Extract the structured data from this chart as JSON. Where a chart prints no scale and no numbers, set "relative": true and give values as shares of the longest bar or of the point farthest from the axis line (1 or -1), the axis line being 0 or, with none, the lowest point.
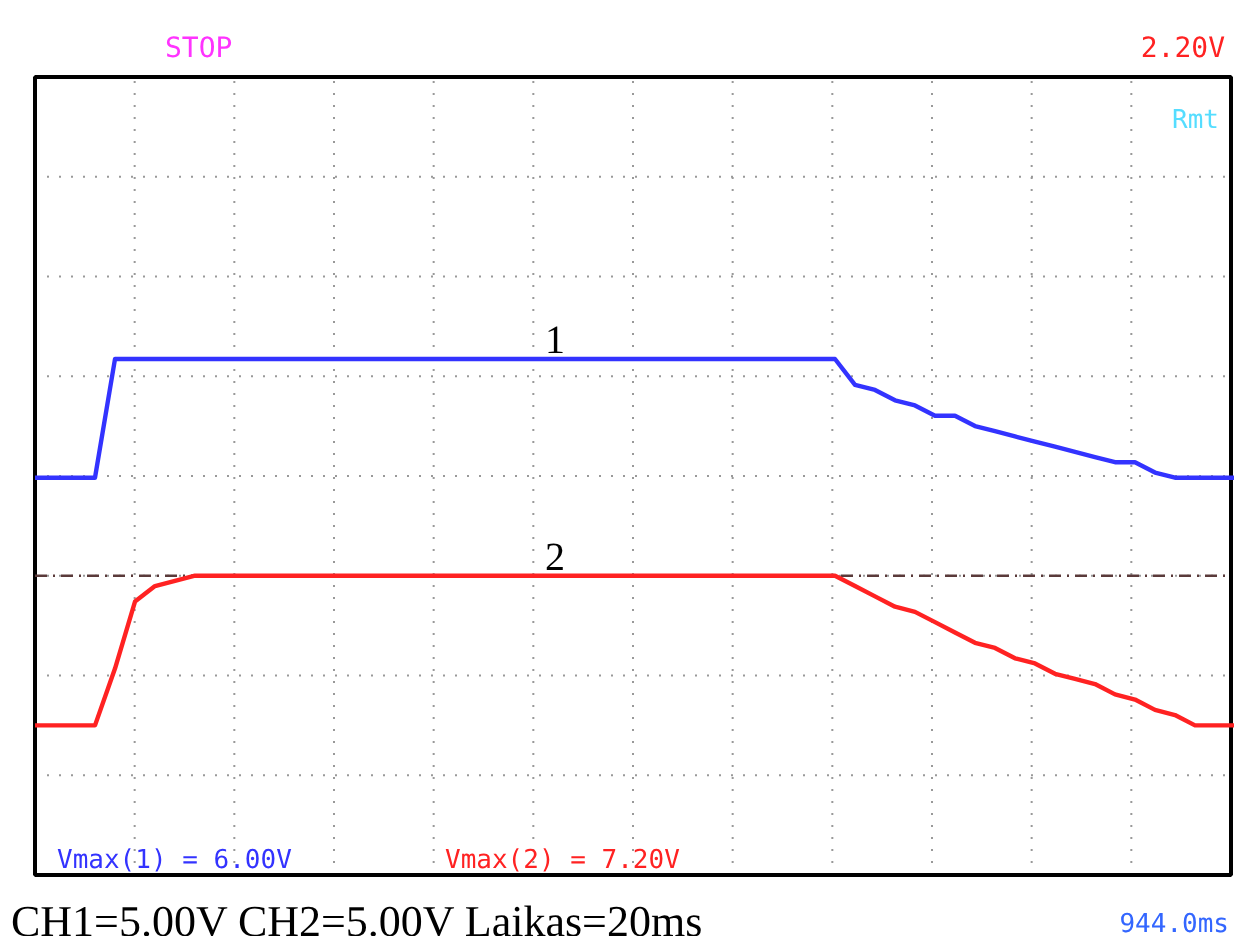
{
  "chart_data": {
    "type": "line",
    "relative": true,
    "grid": true,
    "legend": false,
    "line_style": "solid",
    "marker": "none",
    "categories": [
      null,
      null,
      null,
      null,
      null,
      null,
      null,
      null,
      null,
      null,
      null,
      null,
      null,
      null,
      null,
      null,
      null,
      null,
      null,
      null,
      null,
      null,
      null,
      null,
      null,
      null,
      null,
      null,
      null,
      null,
      null,
      null,
      null,
      null,
      null,
      null,
      null,
      null,
      null,
      null,
      null,
      null,
      null,
      null,
      null,
      null,
      null,
      null,
      null,
      null,
      null,
      null,
      null,
      null,
      null,
      null,
      null,
      null,
      null,
      null,
      null
    ],
    "series": [
      {
        "name": "1",
        "color": "#3333ff",
        "values": [
          0.77,
          0.77,
          0.77,
          0.77,
          1,
          1,
          1,
          1,
          1,
          1,
          1,
          1,
          1,
          1,
          1,
          1,
          1,
          1,
          1,
          1,
          1,
          1,
          1,
          1,
          1,
          1,
          1,
          1,
          1,
          1,
          1,
          1,
          1,
          1,
          1,
          1,
          1,
          1,
          1,
          1,
          1,
          0.95,
          0.94,
          0.92,
          0.91,
          0.89,
          0.89,
          0.87,
          0.86,
          0.85,
          0.84,
          0.83,
          0.82,
          0.81,
          0.8,
          0.8,
          0.78,
          0.77,
          0.77,
          0.77,
          0.77
        ]
      },
      {
        "name": "2",
        "color": "#ff2222",
        "values": [
          0.29,
          0.29,
          0.29,
          0.29,
          0.4,
          0.53,
          0.56,
          0.57,
          0.58,
          0.58,
          0.58,
          0.58,
          0.58,
          0.58,
          0.58,
          0.58,
          0.58,
          0.58,
          0.58,
          0.58,
          0.58,
          0.58,
          0.58,
          0.58,
          0.58,
          0.58,
          0.58,
          0.58,
          0.58,
          0.58,
          0.58,
          0.58,
          0.58,
          0.58,
          0.58,
          0.58,
          0.58,
          0.58,
          0.58,
          0.58,
          0.58,
          0.56,
          0.54,
          0.52,
          0.51,
          0.49,
          0.47,
          0.45,
          0.44,
          0.42,
          0.41,
          0.39,
          0.38,
          0.37,
          0.35,
          0.34,
          0.32,
          0.31,
          0.29,
          0.29,
          0.29
        ]
      }
    ],
    "ref_lines": [
      {
        "axis": "y",
        "value": 0.58,
        "color": "#5a3a3a",
        "line_style": "dashed"
      }
    ],
    "annotations": [
      "STOP",
      "2.20V",
      "Rmt",
      "Vmax(1) = 6.00V",
      "Vmax(2) = 7.20V",
      "CH1=5.00V CH2=5.00V Laikas=20ms",
      "944.0ms"
    ]
  }
}
